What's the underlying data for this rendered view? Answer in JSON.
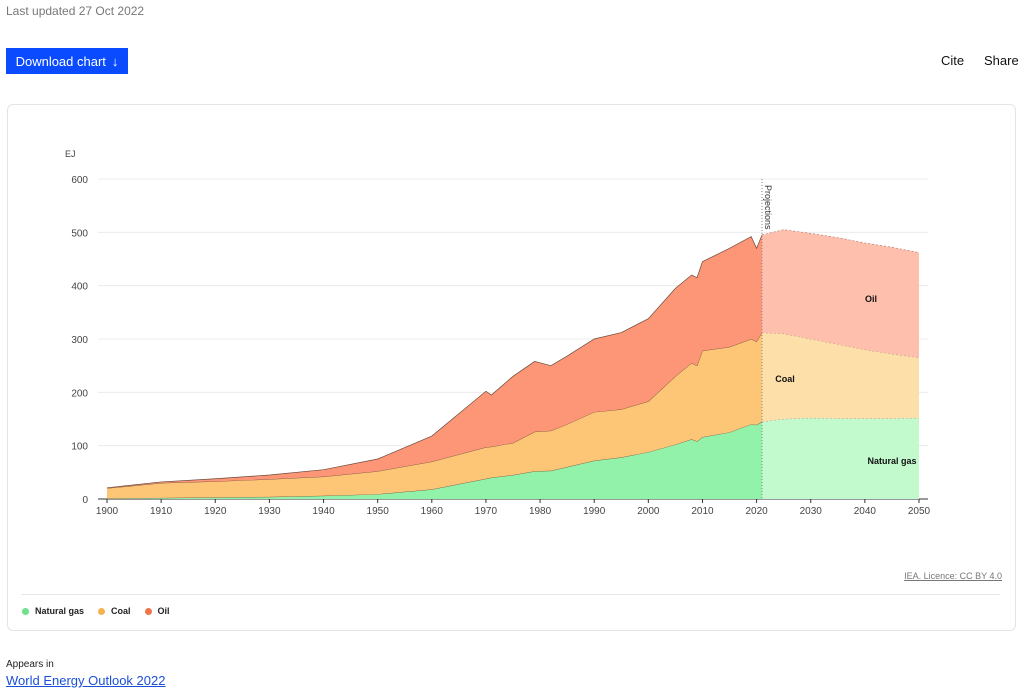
{
  "header": {
    "last_updated": "Last updated 27 Oct 2022",
    "download_label": "Download chart",
    "download_icon": "arrow-down-icon",
    "cite_label": "Cite",
    "share_label": "Share"
  },
  "footer": {
    "licence": "IEA. Licence: CC BY 4.0",
    "appears_in": "Appears in",
    "publication": "World Energy Outlook 2022"
  },
  "chart_data": {
    "type": "area",
    "stacked": true,
    "ylabel": "EJ",
    "ylim": [
      0,
      600
    ],
    "yticks": [
      0,
      100,
      200,
      300,
      400,
      500,
      600
    ],
    "xlim": [
      1900,
      2050
    ],
    "xticks": [
      1900,
      1910,
      1920,
      1930,
      1940,
      1950,
      1960,
      1970,
      1980,
      1990,
      2000,
      2010,
      2020,
      2030,
      2040,
      2050
    ],
    "projection_start": 2021,
    "projection_label": "Projections",
    "legend_position": "bottom-left",
    "x": [
      1900,
      1910,
      1920,
      1930,
      1940,
      1950,
      1960,
      1970,
      1971,
      1975,
      1979,
      1982,
      1985,
      1990,
      1995,
      2000,
      2005,
      2008,
      2009,
      2010,
      2015,
      2019,
      2020,
      2021,
      2025,
      2030,
      2035,
      2040,
      2045,
      2050
    ],
    "series": [
      {
        "name": "Natural gas",
        "color": "#93f2a9",
        "light": "#c2f9cd",
        "dot": "#6ee18b",
        "values": [
          1,
          2,
          3,
          4,
          6,
          9,
          18,
          38,
          40,
          45,
          52,
          53,
          60,
          72,
          78,
          88,
          102,
          112,
          108,
          116,
          125,
          140,
          139,
          145,
          150,
          152,
          151,
          151,
          151,
          152
        ]
      },
      {
        "name": "Coal",
        "color": "#fdc677",
        "light": "#fddfa9",
        "dot": "#f5b24c",
        "values": [
          19,
          28,
          30,
          33,
          36,
          43,
          52,
          59,
          58,
          60,
          74,
          75,
          80,
          91,
          90,
          95,
          128,
          143,
          142,
          162,
          160,
          160,
          156,
          167,
          160,
          148,
          139,
          129,
          121,
          113
        ]
      },
      {
        "name": "Oil",
        "color": "#fd9676",
        "light": "#ffbfad",
        "dot": "#f07449",
        "values": [
          1,
          2,
          5,
          8,
          13,
          23,
          48,
          105,
          97,
          125,
          132,
          122,
          128,
          137,
          144,
          155,
          165,
          165,
          165,
          167,
          185,
          192,
          175,
          183,
          195,
          198,
          200,
          200,
          200,
          197
        ]
      }
    ],
    "annotations": [
      "Oil",
      "Coal",
      "Natural gas"
    ]
  }
}
